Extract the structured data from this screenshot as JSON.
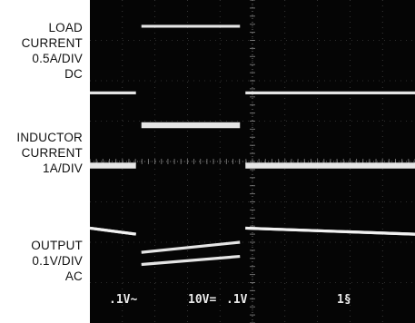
{
  "labels": {
    "load": {
      "line1": "LOAD",
      "line2": "CURRENT",
      "line3": "0.5A/DIV",
      "line4": "DC"
    },
    "inductor": {
      "line1": "INDUCTOR",
      "line2": "CURRENT",
      "line3": "1A/DIV"
    },
    "output": {
      "line1": "OUTPUT",
      "line2": "0.1V/DIV",
      "line3": "AC"
    }
  },
  "readout": {
    "ch1": ".1V~",
    "ch2": "10V=",
    "ch3": ".1V",
    "ch4": "1§"
  },
  "chart_data": {
    "type": "line",
    "title": "",
    "xlabel": "",
    "ylabel": "",
    "grid": true,
    "grid_divisions": {
      "x": 10,
      "y": 8
    },
    "x": [
      0,
      1.5,
      1.5,
      4.7,
      4.7,
      10
    ],
    "series": [
      {
        "values": [
          5.7,
          5.7,
          7.35,
          7.35,
          5.7,
          5.7
        ]
      },
      {
        "values": [
          3.9,
          3.9,
          4.9,
          4.9,
          3.9,
          3.9
        ]
      },
      {
        "values": [
          2.35,
          2.2,
          1.75,
          2.0,
          2.35,
          2.2
        ]
      },
      {
        "values": [
          2.35,
          2.2,
          1.45,
          1.65,
          2.35,
          2.2
        ]
      }
    ],
    "colors": {
      "screen": "#050505",
      "trace": "#f2f2f2",
      "graticule": "#9a9a9a"
    }
  }
}
